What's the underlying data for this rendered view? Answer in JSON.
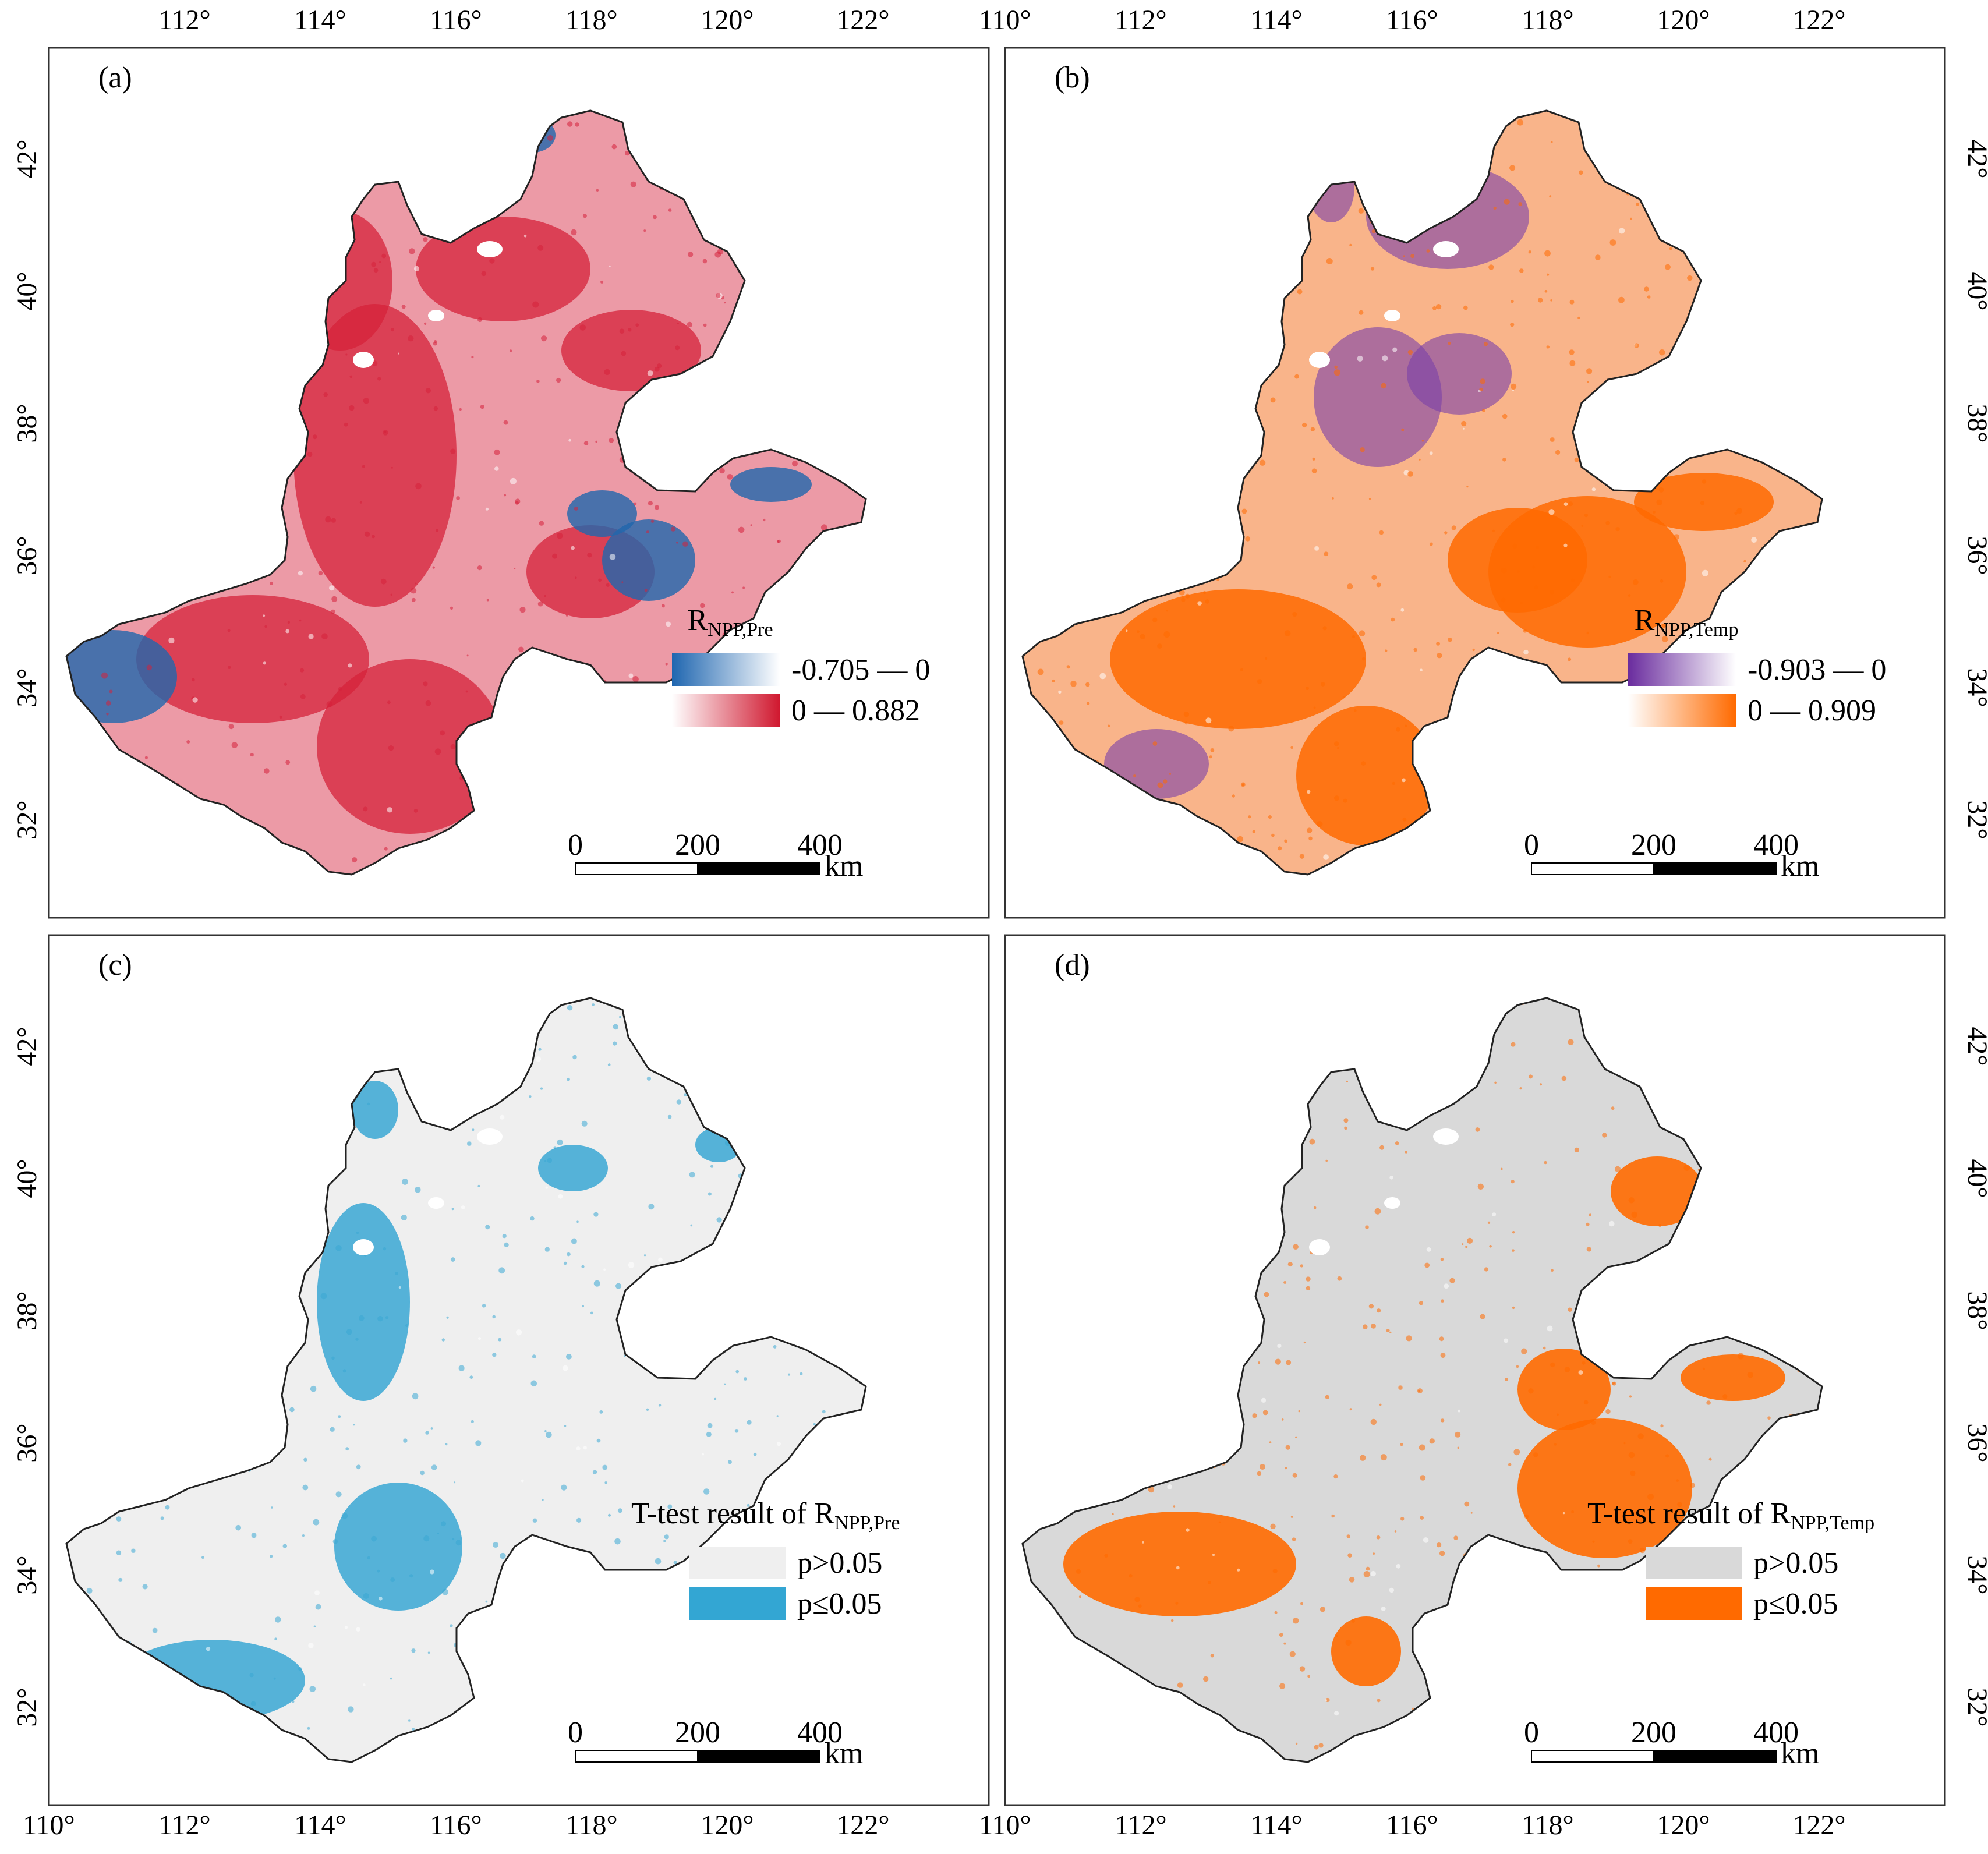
{
  "figure": {
    "lon_ticks": [
      "110°",
      "112°",
      "114°",
      "116°",
      "118°",
      "120°",
      "122°"
    ],
    "lat_ticks": [
      "32°",
      "34°",
      "36°",
      "38°",
      "40°",
      "42°"
    ],
    "scalebar": {
      "labels": [
        "0",
        "200",
        "400"
      ],
      "unit": "km"
    }
  },
  "panels": [
    {
      "id": "a",
      "label": "(a)",
      "map_style": "pre",
      "colors": {
        "neg": "#2166ac",
        "pos": "#d6213a",
        "base": "#ec9aa6"
      },
      "legend": {
        "title_main": "R",
        "title_sub": "NPP,Pre",
        "items": [
          {
            "text": "-0.705 — 0",
            "ramp": [
              "#1f66b0",
              "#ffffff"
            ]
          },
          {
            "text": "0 — 0.882",
            "ramp": [
              "#ffffff",
              "#d0182f"
            ]
          }
        ]
      }
    },
    {
      "id": "b",
      "label": "(b)",
      "map_style": "temp",
      "colors": {
        "neg": "#7a3fa8",
        "pos": "#ff6a00",
        "base": "#f9b48a"
      },
      "legend": {
        "title_main": "R",
        "title_sub": "NPP,Temp",
        "items": [
          {
            "text": "-0.903 — 0",
            "ramp": [
              "#6a2c9e",
              "#ffffff"
            ]
          },
          {
            "text": "0 — 0.909",
            "ramp": [
              "#ffffff",
              "#ff6a00"
            ]
          }
        ]
      }
    },
    {
      "id": "c",
      "label": "(c)",
      "map_style": "sig_pre",
      "colors": {
        "base": "#efefef",
        "sig": "#3aa7d4"
      },
      "legend": {
        "title_main": "T-test result of R",
        "title_sub": "NPP,Pre",
        "items": [
          {
            "text": "p>0.05",
            "color": "#efefef"
          },
          {
            "text": "p≤0.05",
            "color": "#33a6d3"
          }
        ]
      }
    },
    {
      "id": "d",
      "label": "(d)",
      "map_style": "sig_temp",
      "colors": {
        "base": "#d9d9d9",
        "sig": "#ff6a00"
      },
      "legend": {
        "title_main": "T-test result of R",
        "title_sub": "NPP,Temp",
        "items": [
          {
            "text": "p>0.05",
            "color": "#d9d9d9"
          },
          {
            "text": "p≤0.05",
            "color": "#ff6a00"
          }
        ]
      }
    }
  ]
}
